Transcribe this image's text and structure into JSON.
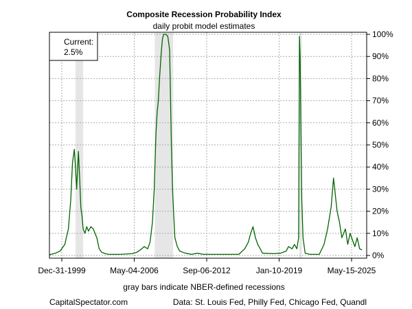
{
  "chart_data": {
    "type": "line",
    "title": "Composite Recession Probability Index",
    "subtitle": "daily probit model estimates",
    "xlabel": "gray bars indicate NBER-defined recessions",
    "ylabel": "",
    "x_ticks": [
      "Dec-31-1999",
      "May-04-2006",
      "Sep-06-2012",
      "Jan-10-2019",
      "May-15-2025"
    ],
    "x_range": [
      1999.0,
      2025.8
    ],
    "ylim": [
      0,
      100
    ],
    "y_ticks": [
      {
        "value": 0,
        "label": "0%"
      },
      {
        "value": 10,
        "label": "10%"
      },
      {
        "value": 20,
        "label": "20%"
      },
      {
        "value": 30,
        "label": "30%"
      },
      {
        "value": 40,
        "label": "40%"
      },
      {
        "value": 50,
        "label": "50%"
      },
      {
        "value": 60,
        "label": "60%"
      },
      {
        "value": 70,
        "label": "70%"
      },
      {
        "value": 80,
        "label": "80%"
      },
      {
        "value": 90,
        "label": "90%"
      },
      {
        "value": 100,
        "label": "100%"
      }
    ],
    "grid": true,
    "line_color": "#006400",
    "recession_color": "#e6e6e6",
    "recessions": [
      [
        2001.2,
        2001.85
      ],
      [
        2007.9,
        2009.45
      ],
      [
        2020.1,
        2020.33
      ]
    ],
    "series": [
      {
        "x": [
          1999.0,
          1999.5,
          1999.9,
          2000.3,
          2000.6,
          2000.8,
          2000.95,
          2001.1,
          2001.2,
          2001.3,
          2001.45,
          2001.55,
          2001.65,
          2001.75,
          2001.85,
          2002.0,
          2002.15,
          2002.3,
          2002.5,
          2002.7,
          2003.0,
          2003.2,
          2003.4,
          2003.7,
          2004.0,
          2005.0,
          2006.0,
          2006.4,
          2006.8,
          2007.0,
          2007.3,
          2007.5,
          2007.7,
          2007.85,
          2008.0,
          2008.1,
          2008.2,
          2008.3,
          2008.45,
          2008.55,
          2008.65,
          2008.75,
          2008.85,
          2009.0,
          2009.15,
          2009.3,
          2009.4,
          2009.5,
          2009.6,
          2009.8,
          2010.0,
          2010.5,
          2011.0,
          2011.5,
          2012.0,
          2013.0,
          2014.0,
          2015.0,
          2015.5,
          2015.8,
          2016.0,
          2016.2,
          2016.4,
          2016.6,
          2016.8,
          2017.0,
          2018.0,
          2018.5,
          2019.0,
          2019.2,
          2019.5,
          2019.7,
          2019.9,
          2020.05,
          2020.12,
          2020.18,
          2020.25,
          2020.32,
          2020.42,
          2020.6,
          2021.0,
          2021.8,
          2022.2,
          2022.5,
          2022.8,
          2023.0,
          2023.3,
          2023.5,
          2023.7,
          2024.0,
          2024.2,
          2024.4,
          2024.6,
          2024.8,
          2025.0,
          2025.2,
          2025.4
        ],
        "y": [
          0.3,
          1.0,
          2.0,
          5.0,
          12.0,
          25.0,
          42.0,
          48.0,
          40.0,
          30.0,
          47.0,
          35.0,
          22.0,
          18.0,
          12.0,
          10.0,
          13.0,
          11.0,
          13.0,
          12.0,
          8.0,
          3.0,
          1.5,
          0.8,
          0.5,
          0.5,
          0.8,
          1.5,
          3.0,
          4.0,
          3.0,
          6.0,
          15.0,
          30.0,
          55.0,
          65.0,
          70.0,
          80.0,
          92.0,
          98.0,
          100.0,
          100.0,
          100.0,
          99.0,
          93.0,
          50.0,
          30.0,
          18.0,
          8.0,
          4.0,
          2.0,
          1.0,
          0.5,
          1.0,
          0.5,
          0.5,
          0.5,
          0.5,
          3.0,
          6.0,
          10.0,
          13.0,
          8.0,
          5.0,
          3.0,
          1.0,
          0.8,
          1.0,
          2.0,
          4.0,
          3.0,
          5.0,
          3.0,
          8.0,
          99.0,
          90.0,
          55.0,
          25.0,
          8.0,
          1.0,
          0.5,
          0.5,
          5.0,
          12.0,
          22.0,
          35.0,
          20.0,
          15.0,
          8.0,
          12.0,
          5.0,
          10.0,
          7.0,
          4.0,
          8.0,
          3.0,
          2.5
        ]
      }
    ],
    "annotation": {
      "label": "Current:",
      "value": "2.5%"
    },
    "footer_left": "CapitalSpectator.com",
    "footer_right": "Data: St. Louis Fed, Philly Fed, Chicago Fed, Quandl"
  }
}
